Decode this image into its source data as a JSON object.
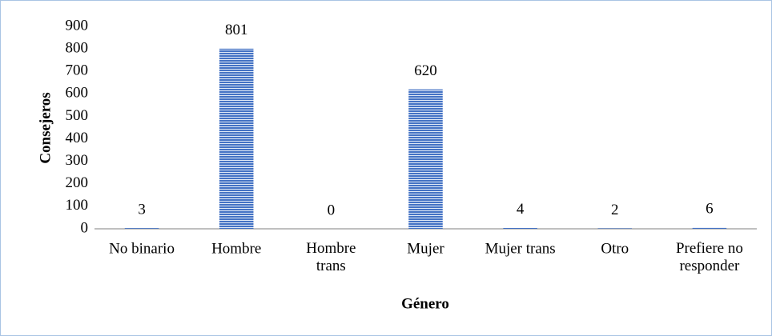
{
  "chart_data": {
    "type": "bar",
    "x_label": "Género",
    "y_label": "Consejeros",
    "categories": [
      "No binario",
      "Hombre",
      "Hombre trans",
      "Mujer",
      "Mujer trans",
      "Otro",
      "Prefiere no responder"
    ],
    "values": [
      3,
      801,
      0,
      620,
      4,
      2,
      6
    ],
    "color": "#4472c4",
    "ylim": [
      0,
      900
    ],
    "yticks": [
      0,
      100,
      200,
      300,
      400,
      500,
      600,
      700,
      800,
      900
    ],
    "grid": false
  }
}
